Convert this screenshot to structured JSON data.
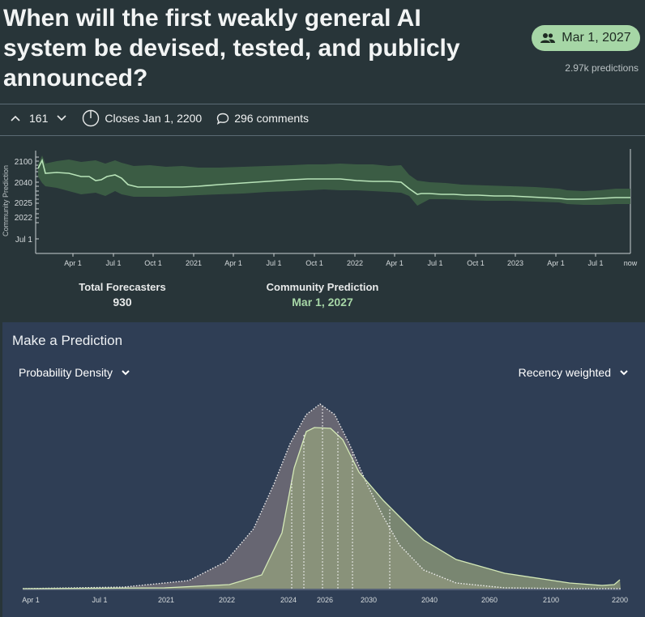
{
  "question": {
    "title": "When will the first weakly general AI system be devised, tested, and publicly announced?",
    "community_badge": "Mar 1, 2027",
    "predictions_count": "2.97k predictions"
  },
  "meta": {
    "votes": "161",
    "closes": "Closes Jan 1, 2200",
    "comments": "296 comments"
  },
  "timeline": {
    "y_axis_label": "Community Prediction",
    "y_ticks": [
      "2100",
      "2040",
      "2025",
      "2022",
      "Jul 1"
    ],
    "x_ticks": [
      "Apr 1",
      "Jul 1",
      "Oct 1",
      "2021",
      "Apr 1",
      "Jul 1",
      "Oct 1",
      "2022",
      "Apr 1",
      "Jul 1",
      "Oct 1",
      "2023",
      "Apr 1",
      "Jul 1",
      "now"
    ]
  },
  "stats": {
    "forecasters_label": "Total Forecasters",
    "forecasters_value": "930",
    "community_label": "Community Prediction",
    "community_value": "Mar 1, 2027"
  },
  "panel": {
    "title": "Make a Prediction",
    "density_label": "Probability Density",
    "weighting_label": "Recency weighted",
    "x_ticks": [
      "Apr 1",
      "Jul 1",
      "2021",
      "2022",
      "2024",
      "2026",
      "2030",
      "2040",
      "2060",
      "2100",
      "2200"
    ]
  },
  "colors": {
    "accent_green": "#a6d6a6",
    "band_green": "#3c5f45",
    "panel_bg": "#2f3e55",
    "page_bg": "#283539"
  }
}
